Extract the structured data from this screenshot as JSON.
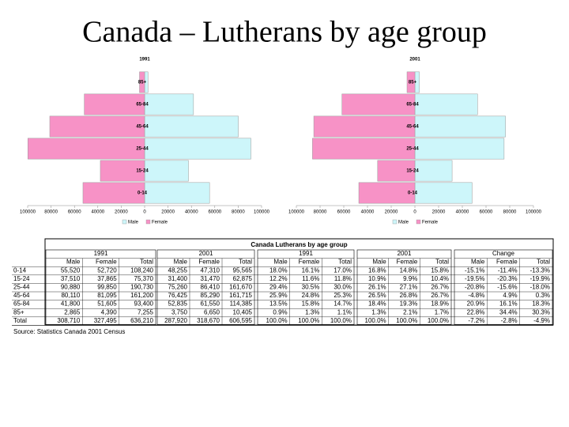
{
  "title": "Canada – Lutherans by age group",
  "chart_data": [
    {
      "type": "pyramid",
      "title": "1991",
      "categories": [
        "0-14",
        "15-24",
        "25-44",
        "45-64",
        "65-84",
        "85+"
      ],
      "series": [
        {
          "name": "Male",
          "color": "#cdf6fa",
          "values": [
            55520,
            37510,
            90880,
            80110,
            41800,
            2865
          ]
        },
        {
          "name": "Female",
          "color": "#f792c6",
          "values": [
            52720,
            37865,
            99850,
            81095,
            51605,
            4390
          ]
        }
      ],
      "xlim": [
        -100000,
        100000
      ],
      "xticks": [
        {
          "value": -100000,
          "label": "100000"
        },
        {
          "value": -80000,
          "label": "80000"
        },
        {
          "value": -60000,
          "label": "60000"
        },
        {
          "value": -40000,
          "label": "40000"
        },
        {
          "value": -20000,
          "label": "20000"
        },
        0,
        20000,
        40000,
        60000,
        80000,
        100000
      ]
    },
    {
      "type": "pyramid",
      "title": "2001",
      "categories": [
        "0-14",
        "15-24",
        "25-44",
        "45-64",
        "65-84",
        "85+"
      ],
      "series": [
        {
          "name": "Male",
          "color": "#cdf6fa",
          "values": [
            48255,
            31400,
            75260,
            76425,
            52835,
            3750
          ]
        },
        {
          "name": "Female",
          "color": "#f792c6",
          "values": [
            47310,
            31470,
            86410,
            85290,
            61550,
            6650
          ]
        }
      ],
      "xlim": [
        -100000,
        100000
      ],
      "xticks": [
        {
          "value": -100000,
          "label": "100000"
        },
        {
          "value": -80000,
          "label": "80000"
        },
        {
          "value": -60000,
          "label": "60000"
        },
        {
          "value": -40000,
          "label": "40000"
        },
        {
          "value": -20000,
          "label": "20000"
        },
        0,
        20000,
        40000,
        60000,
        80000,
        100000
      ]
    }
  ],
  "table": {
    "title": "Canada Lutherans by age group",
    "groups": [
      "1991",
      "2001",
      "1991",
      "2001",
      "Change"
    ],
    "subheaders": [
      "Male",
      "Female",
      "Total"
    ],
    "rows": [
      {
        "label": "0-14",
        "cells": [
          "55,520",
          "52,720",
          "108,240",
          "48,255",
          "47,310",
          "95,565",
          "18.0%",
          "16.1%",
          "17.0%",
          "16.8%",
          "14.8%",
          "15.8%",
          "-15.1%",
          "-11.4%",
          "-13.3%"
        ]
      },
      {
        "label": "15-24",
        "cells": [
          "37,510",
          "37,865",
          "75,370",
          "31,400",
          "31,470",
          "62,875",
          "12.2%",
          "11.6%",
          "11.8%",
          "10.9%",
          "9.9%",
          "10.4%",
          "-19.5%",
          "-20.3%",
          "-19.9%"
        ]
      },
      {
        "label": "25-44",
        "cells": [
          "90,880",
          "99,850",
          "190,730",
          "75,260",
          "86,410",
          "161,670",
          "29.4%",
          "30.5%",
          "30.0%",
          "26.1%",
          "27.1%",
          "26.7%",
          "-20.8%",
          "-15.6%",
          "-18.0%"
        ]
      },
      {
        "label": "45-64",
        "cells": [
          "80,110",
          "81,095",
          "161,200",
          "76,425",
          "85,290",
          "161,715",
          "25.9%",
          "24.8%",
          "25.3%",
          "26.5%",
          "26.8%",
          "26.7%",
          "-4.8%",
          "4.9%",
          "0.3%"
        ]
      },
      {
        "label": "65-84",
        "cells": [
          "41,800",
          "51,605",
          "93,400",
          "52,835",
          "61,550",
          "114,385",
          "13.5%",
          "15.8%",
          "14.7%",
          "18.4%",
          "19.3%",
          "18.9%",
          "20.9%",
          "16.1%",
          "18.3%"
        ]
      },
      {
        "label": "85+",
        "cells": [
          "2,865",
          "4,390",
          "7,255",
          "3,750",
          "6,650",
          "10,405",
          "0.9%",
          "1.3%",
          "1.1%",
          "1.3%",
          "2.1%",
          "1.7%",
          "22.8%",
          "34.4%",
          "30.3%"
        ]
      },
      {
        "label": "Total",
        "cells": [
          "308,710",
          "327,495",
          "636,210",
          "287,920",
          "318,670",
          "606,595",
          "100.0%",
          "100.0%",
          "100.0%",
          "100.0%",
          "100.0%",
          "100.0%",
          "-7.2%",
          "-2.8%",
          "-4.9%"
        ]
      }
    ],
    "source": "Source: Statistics Canada 2001 Census"
  }
}
